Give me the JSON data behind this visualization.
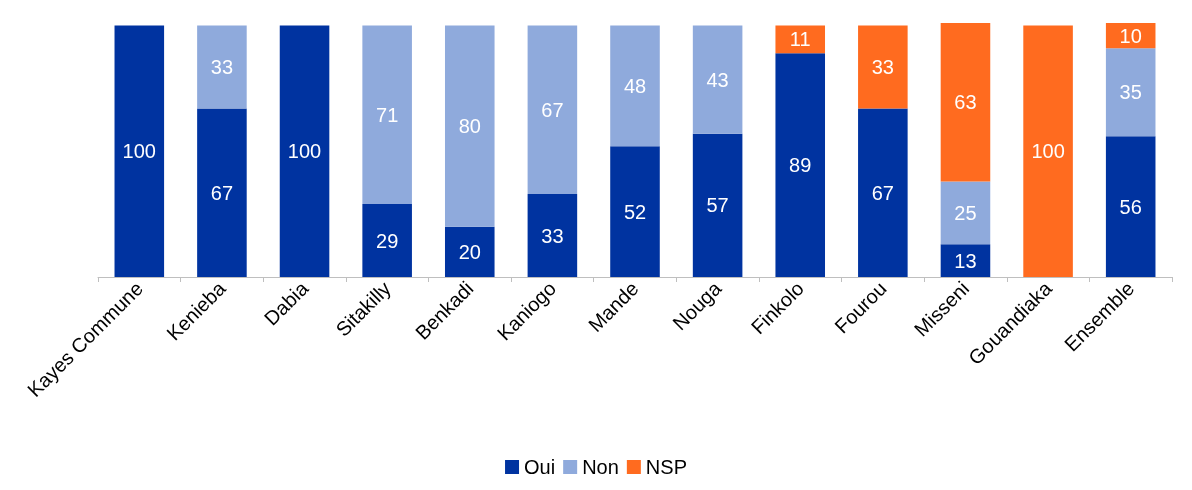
{
  "chart_data": {
    "type": "bar",
    "stacked": true,
    "categories": [
      "Kayes Commune",
      "Kenieba",
      "Dabia",
      "Sitakilly",
      "Benkadi",
      "Kaniogo",
      "Mande",
      "Nouga",
      "Finkolo",
      "Fourou",
      "Misseni",
      "Gouandiaka",
      "Ensemble"
    ],
    "series": [
      {
        "name": "Oui",
        "color": "#0033a0",
        "values": [
          100,
          67,
          100,
          29,
          20,
          33,
          52,
          57,
          89,
          67,
          13,
          null,
          56
        ]
      },
      {
        "name": "Non",
        "color": "#8faadc",
        "values": [
          null,
          33,
          null,
          71,
          80,
          67,
          48,
          43,
          null,
          null,
          25,
          null,
          35
        ]
      },
      {
        "name": "NSP",
        "color": "#ff6b1f",
        "values": [
          null,
          null,
          null,
          null,
          null,
          null,
          null,
          null,
          11,
          33,
          63,
          100,
          10
        ]
      }
    ],
    "ylim": [
      0,
      101
    ],
    "tick_labels": "x",
    "data_labels": true,
    "legend": "bottom",
    "grid": false
  }
}
